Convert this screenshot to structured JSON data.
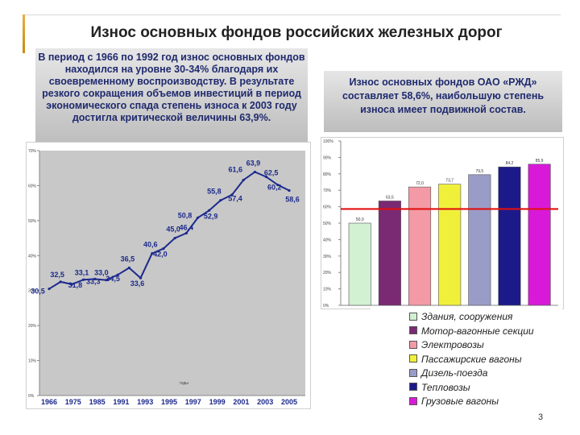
{
  "slide": {
    "title": "Износ основных фондов российских железных дорог",
    "left_text": "В период с 1966 по 1992 год износ основных фондов находился на уровне 30-34% благодаря их своевременному воспроизводству. В результате резкого сокращения объемов инвестиций в период экономического спада степень износа к 2003 году достигла критической величины 63,9%.",
    "right_text": "Износ основных фондов ОАО «РЖД» составляет 58,6%, наибольшую степень износа имеет подвижной состав.",
    "page_number": "3"
  },
  "chart_data": [
    {
      "type": "line",
      "title": "",
      "xlabel": "годы",
      "ylabel": "",
      "ylim": [
        0,
        70
      ],
      "y_ticks": [
        "0%",
        "10%",
        "20%",
        "30%",
        "40%",
        "50%",
        "60%",
        "70%"
      ],
      "x_ticks": [
        "1966",
        "1975",
        "1985",
        "1991",
        "1993",
        "1995",
        "1997",
        "1999",
        "2001",
        "2003",
        "2005"
      ],
      "grid": false,
      "color": "#1c2a8c",
      "points": [
        {
          "x": 0,
          "value": 30.5,
          "label": "30,5"
        },
        {
          "x": 1,
          "value": 32.5,
          "label": "32,5"
        },
        {
          "x": 2,
          "value": 31.8,
          "label": "31,8"
        },
        {
          "x": 3,
          "value": 33.1,
          "label": "33,1"
        },
        {
          "x": 4,
          "value": 33.3,
          "label": "33,3"
        },
        {
          "x": 5,
          "value": 33.0,
          "label": "33,0"
        },
        {
          "x": 6,
          "value": 34.5,
          "label": "34,5"
        },
        {
          "x": 7,
          "value": 36.5,
          "label": "36,5"
        },
        {
          "x": 8,
          "value": 33.6,
          "label": "33,6"
        },
        {
          "x": 9,
          "value": 40.6,
          "label": "40,6"
        },
        {
          "x": 10,
          "value": 42.0,
          "label": "42,0"
        },
        {
          "x": 11,
          "value": 45.0,
          "label": "45,0"
        },
        {
          "x": 12,
          "value": 46.4,
          "label": "46,4"
        },
        {
          "x": 13,
          "value": 50.8,
          "label": "50,8"
        },
        {
          "x": 14,
          "value": 52.9,
          "label": "52,9"
        },
        {
          "x": 15,
          "value": 55.8,
          "label": "55,8"
        },
        {
          "x": 16,
          "value": 57.4,
          "label": "57,4"
        },
        {
          "x": 17,
          "value": 61.6,
          "label": "61,6"
        },
        {
          "x": 18,
          "value": 63.9,
          "label": "63,9"
        },
        {
          "x": 19,
          "value": 62.5,
          "label": "62,5"
        },
        {
          "x": 20,
          "value": 60.2,
          "label": "60,2"
        },
        {
          "x": 21,
          "value": 58.6,
          "label": "58,6"
        }
      ]
    },
    {
      "type": "bar",
      "title": "",
      "ylim": [
        0,
        100
      ],
      "y_ticks": [
        "0%",
        "10%",
        "20%",
        "30%",
        "40%",
        "50%",
        "60%",
        "70%",
        "80%",
        "90%",
        "100%"
      ],
      "reference_line": {
        "value": 58.6,
        "color": "#e01010"
      },
      "series": [
        {
          "name": "Здания, сооружения",
          "value": 50.0,
          "label": "50,0",
          "color": "#d2f0d2"
        },
        {
          "name": "Мотор-вагонные секции",
          "value": 63.5,
          "label": "63,5",
          "color": "#7a2a72"
        },
        {
          "name": "Электровозы",
          "value": 72.0,
          "label": "72,0",
          "color": "#f39aa6"
        },
        {
          "name": "Пассажирские вагоны",
          "value": 73.7,
          "label": "73,7",
          "color": "#f0f03a"
        },
        {
          "name": "Дизель-поезда",
          "value": 79.5,
          "label": "79,5",
          "color": "#9a9cc8"
        },
        {
          "name": "Тепловозы",
          "value": 84.2,
          "label": "84,2",
          "color": "#1c1a8a"
        },
        {
          "name": "Грузовые вагоны",
          "value": 85.9,
          "label": "85,9",
          "color": "#d81ad8"
        }
      ]
    }
  ]
}
